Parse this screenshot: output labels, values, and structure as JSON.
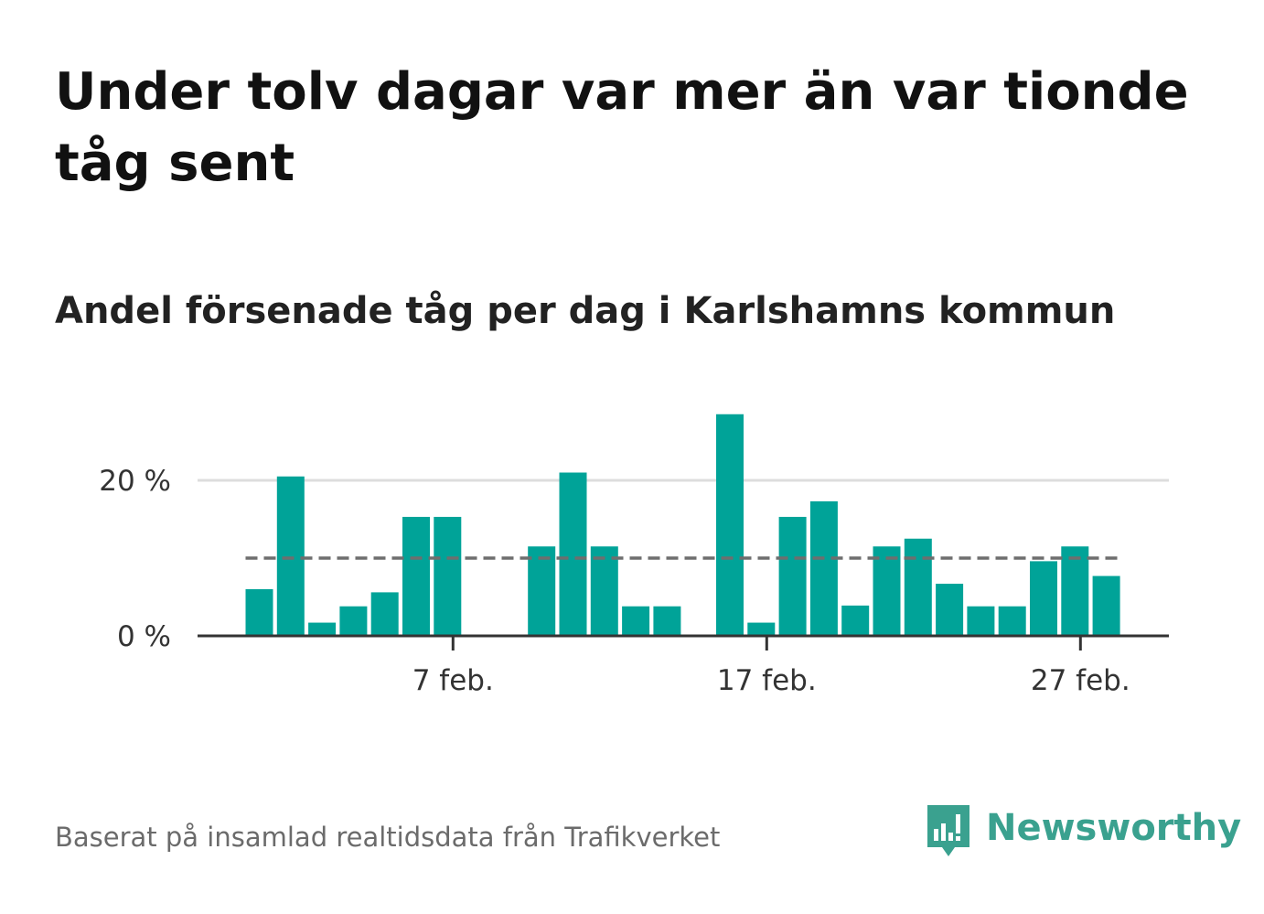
{
  "title": "Under tolv dagar var mer än var tionde tåg sent",
  "subtitle": "Andel försenade tåg per dag i Karlshamns kommun",
  "source": "Baserat på insamlad realtidsdata från Trafikverket",
  "brand": {
    "name": "Newsworthy",
    "color": "#3aa18f"
  },
  "colors": {
    "bar": "#00a398",
    "reference_line": "#6e6e6e",
    "gridline": "#dddddd",
    "axis": "#333333"
  },
  "chart_data": {
    "type": "bar",
    "categories": [
      1,
      2,
      3,
      4,
      5,
      6,
      7,
      8,
      9,
      10,
      11,
      12,
      13,
      14,
      15,
      16,
      17,
      18,
      19,
      20,
      21,
      22,
      23,
      24,
      25,
      26,
      27,
      28
    ],
    "values": [
      6,
      20.5,
      1.7,
      3.8,
      5.6,
      15.3,
      15.3,
      null,
      0,
      11.5,
      21,
      11.5,
      3.8,
      3.8,
      0,
      28.5,
      1.7,
      15.3,
      17.3,
      3.9,
      11.5,
      12.5,
      6.7,
      3.8,
      3.8,
      9.6,
      11.5,
      7.7
    ],
    "reference_line": 10,
    "ylim": [
      0,
      30
    ],
    "yticks": [
      {
        "value": 0,
        "label": "0 %"
      },
      {
        "value": 20,
        "label": "20 %"
      }
    ],
    "xticks": [
      {
        "day": 7,
        "label": "7 feb."
      },
      {
        "day": 17,
        "label": "17 feb."
      },
      {
        "day": 27,
        "label": "27 feb."
      }
    ],
    "xlabel": "",
    "ylabel": "",
    "grid": true
  }
}
